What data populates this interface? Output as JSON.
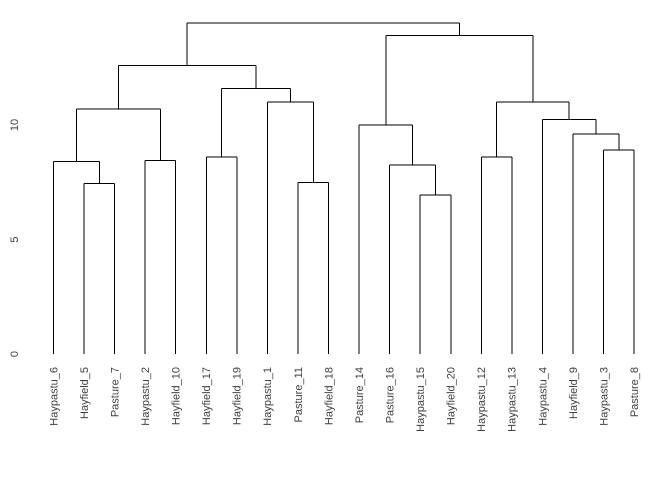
{
  "figure": {
    "background_color": "#ffffff",
    "line_color": "#000000",
    "text_color": "#404040",
    "title": ""
  },
  "chart_data": {
    "type": "dendrogram",
    "orientation": "vertical",
    "title": "",
    "xlabel": "",
    "ylabel": "",
    "grid": false,
    "legend": false,
    "ylim": [
      0,
      14.45
    ],
    "yticks": [
      "0",
      "5",
      "10"
    ],
    "ytick_values": [
      0,
      5,
      10
    ],
    "leaf_order": [
      "Haypastu_6",
      "Hayfield_5",
      "Pasture_7",
      "Haypastu_2",
      "Hayfield_10",
      "Hayfield_17",
      "Hayfield_19",
      "Haypastu_1",
      "Pasture_11",
      "Hayfield_18",
      "Pasture_14",
      "Pasture_16",
      "Haypastu_15",
      "Hayfield_20",
      "Haypastu_12",
      "Haypastu_13",
      "Haypastu_4",
      "Hayfield_9",
      "Haypastu_3",
      "Pasture_8"
    ],
    "tree": {
      "height": 14.45,
      "children": [
        {
          "height": 12.6,
          "children": [
            {
              "height": 10.7,
              "children": [
                {
                  "height": 8.4,
                  "children": [
                    {
                      "leaf": "Haypastu_6"
                    },
                    {
                      "height": 7.45,
                      "children": [
                        {
                          "leaf": "Hayfield_5"
                        },
                        {
                          "leaf": "Pasture_7"
                        }
                      ]
                    }
                  ]
                },
                {
                  "height": 8.45,
                  "children": [
                    {
                      "leaf": "Haypastu_2"
                    },
                    {
                      "leaf": "Hayfield_10"
                    }
                  ]
                }
              ]
            },
            {
              "height": 11.6,
              "children": [
                {
                  "height": 8.6,
                  "children": [
                    {
                      "leaf": "Hayfield_17"
                    },
                    {
                      "leaf": "Hayfield_19"
                    }
                  ]
                },
                {
                  "height": 11.0,
                  "children": [
                    {
                      "leaf": "Haypastu_1"
                    },
                    {
                      "height": 7.5,
                      "children": [
                        {
                          "leaf": "Pasture_11"
                        },
                        {
                          "leaf": "Hayfield_18"
                        }
                      ]
                    }
                  ]
                }
              ]
            }
          ]
        },
        {
          "height": 13.9,
          "children": [
            {
              "height": 10.0,
              "children": [
                {
                  "leaf": "Pasture_14"
                },
                {
                  "height": 8.25,
                  "children": [
                    {
                      "leaf": "Pasture_16"
                    },
                    {
                      "height": 6.95,
                      "children": [
                        {
                          "leaf": "Haypastu_15"
                        },
                        {
                          "leaf": "Hayfield_20"
                        }
                      ]
                    }
                  ]
                }
              ]
            },
            {
              "height": 11.0,
              "children": [
                {
                  "height": 8.6,
                  "children": [
                    {
                      "leaf": "Haypastu_12"
                    },
                    {
                      "leaf": "Haypastu_13"
                    }
                  ]
                },
                {
                  "height": 10.25,
                  "children": [
                    {
                      "leaf": "Haypastu_4"
                    },
                    {
                      "height": 9.6,
                      "children": [
                        {
                          "leaf": "Hayfield_9"
                        },
                        {
                          "height": 8.9,
                          "children": [
                            {
                              "leaf": "Haypastu_3"
                            },
                            {
                              "leaf": "Pasture_8"
                            }
                          ]
                        }
                      ]
                    }
                  ]
                }
              ]
            }
          ]
        }
      ]
    }
  }
}
